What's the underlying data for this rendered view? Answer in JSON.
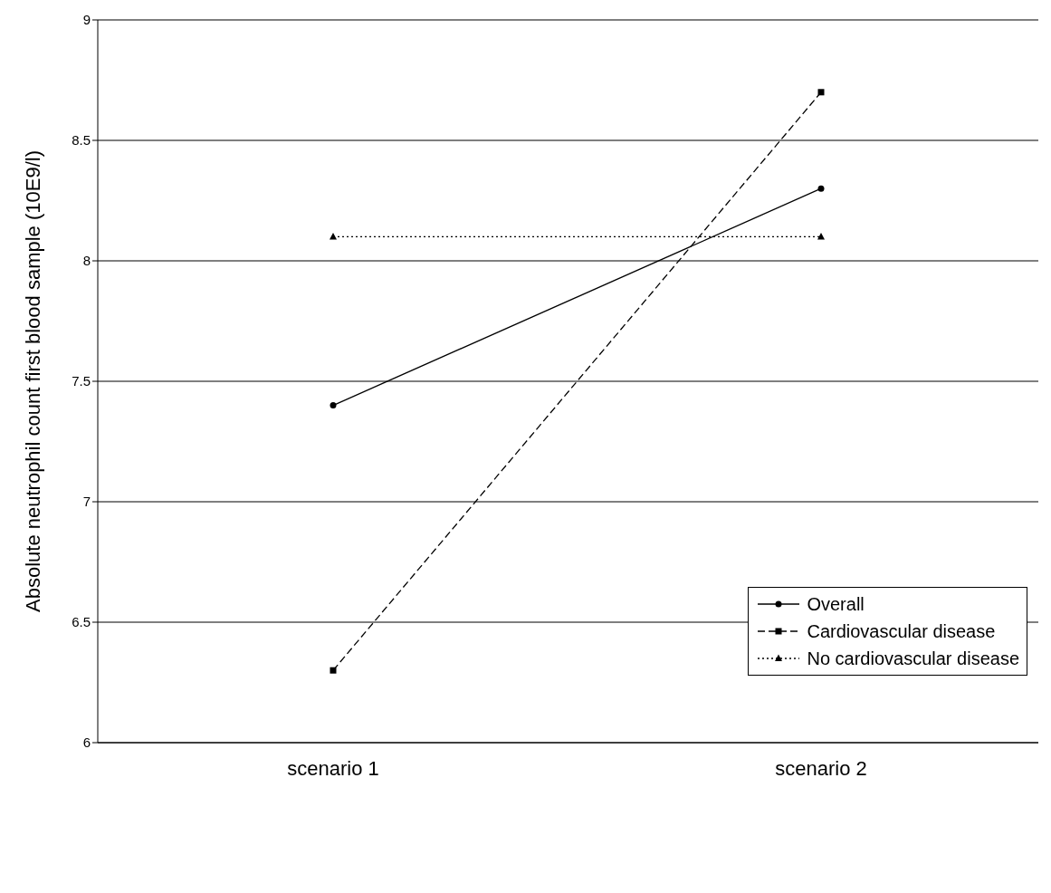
{
  "chart_data": {
    "type": "line",
    "ylabel": "Absolute neutrophil count first blood sample (10E9/l)",
    "categories": [
      "scenario 1",
      "scenario 2"
    ],
    "series": [
      {
        "name": "Overall",
        "color": "#000000",
        "values": [
          7.4,
          8.3
        ],
        "marker": "circle",
        "line_style": "solid"
      },
      {
        "name": "Cardiovascular disease",
        "color": "#000000",
        "values": [
          6.3,
          8.7
        ],
        "marker": "square",
        "line_style": "dashed"
      },
      {
        "name": "No cardiovascular disease",
        "color": "#000000",
        "values": [
          8.1,
          8.1
        ],
        "marker": "triangle",
        "line_style": "dotted"
      }
    ],
    "ylim": [
      6,
      9
    ],
    "yticks": [
      6,
      6.5,
      7,
      7.5,
      8,
      8.5,
      9
    ],
    "grid": "y",
    "legend": "right"
  }
}
